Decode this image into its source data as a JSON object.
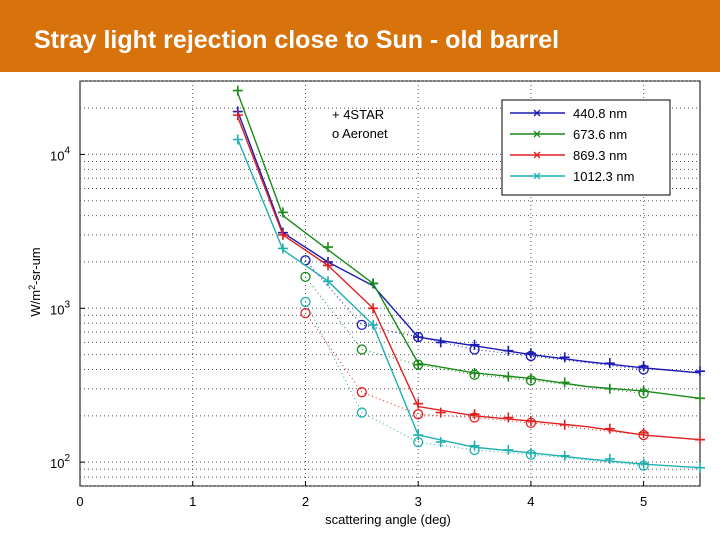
{
  "header": {
    "title": "Stray light rejection close to Sun - old barrel"
  },
  "colors": {
    "title_bar": "#d8720a",
    "title_text": "#ffffff"
  },
  "chart_data": {
    "type": "line",
    "title": "",
    "xlabel": "scattering angle (deg)",
    "ylabel": "W/m²-sr-um",
    "xlim": [
      0,
      5.5
    ],
    "ylim": [
      70,
      30000
    ],
    "yscale": "log",
    "grid": true,
    "x_ticks": [
      0,
      1,
      2,
      3,
      4,
      5
    ],
    "y_ticks": [
      {
        "value": 100,
        "base": "10",
        "exp": "2"
      },
      {
        "value": 1000,
        "base": "10",
        "exp": "3"
      },
      {
        "value": 10000,
        "base": "10",
        "exp": "4"
      }
    ],
    "legend": {
      "placement": "top-right",
      "entries": [
        "440.8 nm",
        "673.6 nm",
        "869.3 nm",
        "1012.3 nm"
      ]
    },
    "annotations": [
      "+ 4STAR",
      "o Aeronet"
    ],
    "series": [
      {
        "name": "440.8 nm",
        "color": "#1a1ab4",
        "line": [
          [
            1.4,
            19000
          ],
          [
            1.8,
            3100
          ],
          [
            2.2,
            2000
          ],
          [
            2.6,
            1400
          ],
          [
            3.0,
            650
          ],
          [
            3.5,
            570
          ],
          [
            4.0,
            500
          ],
          [
            4.5,
            450
          ],
          [
            5.0,
            410
          ],
          [
            5.5,
            380
          ]
        ],
        "star": [
          [
            1.4,
            19000
          ],
          [
            1.8,
            3100
          ],
          [
            2.2,
            2000
          ],
          [
            2.6,
            1450
          ],
          [
            3.0,
            650
          ],
          [
            3.2,
            600
          ],
          [
            3.5,
            580
          ],
          [
            3.8,
            530
          ],
          [
            4.0,
            510
          ],
          [
            4.3,
            480
          ],
          [
            4.7,
            440
          ],
          [
            5.0,
            420
          ],
          [
            5.5,
            390
          ]
        ],
        "aeronet": [
          [
            2.0,
            2050
          ],
          [
            2.5,
            780
          ],
          [
            3.0,
            650
          ],
          [
            3.5,
            540
          ],
          [
            4.0,
            490
          ],
          [
            5.0,
            400
          ]
        ]
      },
      {
        "name": "673.6 nm",
        "color": "#1a8a1a",
        "line": [
          [
            1.4,
            25000
          ],
          [
            1.8,
            4000
          ],
          [
            2.2,
            2400
          ],
          [
            2.6,
            1450
          ],
          [
            3.0,
            440
          ],
          [
            3.5,
            380
          ],
          [
            4.0,
            350
          ],
          [
            4.5,
            310
          ],
          [
            5.0,
            290
          ],
          [
            5.5,
            260
          ]
        ],
        "star": [
          [
            1.4,
            26000
          ],
          [
            1.8,
            4200
          ],
          [
            2.2,
            2500
          ],
          [
            2.6,
            1450
          ],
          [
            3.0,
            430
          ],
          [
            3.5,
            380
          ],
          [
            3.8,
            360
          ],
          [
            4.0,
            350
          ],
          [
            4.3,
            330
          ],
          [
            4.7,
            300
          ],
          [
            5.0,
            290
          ],
          [
            5.5,
            260
          ]
        ],
        "aeronet": [
          [
            2.0,
            1600
          ],
          [
            2.5,
            540
          ],
          [
            3.0,
            430
          ],
          [
            3.5,
            370
          ],
          [
            4.0,
            340
          ],
          [
            5.0,
            280
          ]
        ]
      },
      {
        "name": "869.3 nm",
        "color": "#e02020",
        "line": [
          [
            1.4,
            17500
          ],
          [
            1.8,
            3000
          ],
          [
            2.2,
            1900
          ],
          [
            2.6,
            1000
          ],
          [
            3.0,
            230
          ],
          [
            3.5,
            200
          ],
          [
            4.0,
            185
          ],
          [
            4.5,
            170
          ],
          [
            5.0,
            150
          ],
          [
            5.5,
            140
          ]
        ],
        "star": [
          [
            1.4,
            18000
          ],
          [
            1.8,
            3000
          ],
          [
            2.2,
            1900
          ],
          [
            2.6,
            1000
          ],
          [
            3.0,
            240
          ],
          [
            3.2,
            210
          ],
          [
            3.5,
            205
          ],
          [
            3.8,
            195
          ],
          [
            4.0,
            185
          ],
          [
            4.3,
            175
          ],
          [
            4.7,
            165
          ],
          [
            5.0,
            155
          ],
          [
            5.5,
            140
          ]
        ],
        "aeronet": [
          [
            2.0,
            930
          ],
          [
            2.5,
            285
          ],
          [
            3.0,
            205
          ],
          [
            3.5,
            195
          ],
          [
            4.0,
            180
          ],
          [
            5.0,
            150
          ]
        ]
      },
      {
        "name": "1012.3 nm",
        "color": "#20b0b0",
        "line": [
          [
            1.4,
            12500
          ],
          [
            1.8,
            2400
          ],
          [
            2.2,
            1500
          ],
          [
            2.6,
            780
          ],
          [
            3.0,
            150
          ],
          [
            3.5,
            125
          ],
          [
            4.0,
            115
          ],
          [
            4.5,
            105
          ],
          [
            5.0,
            97
          ],
          [
            5.5,
            92
          ]
        ],
        "star": [
          [
            1.4,
            12500
          ],
          [
            1.8,
            2450
          ],
          [
            2.2,
            1500
          ],
          [
            2.6,
            780
          ],
          [
            3.0,
            150
          ],
          [
            3.2,
            135
          ],
          [
            3.5,
            128
          ],
          [
            3.8,
            120
          ],
          [
            4.0,
            115
          ],
          [
            4.3,
            110
          ],
          [
            4.7,
            105
          ],
          [
            5.0,
            98
          ],
          [
            5.5,
            92
          ]
        ],
        "aeronet": [
          [
            2.0,
            1100
          ],
          [
            2.5,
            210
          ],
          [
            3.0,
            135
          ],
          [
            3.5,
            120
          ],
          [
            4.0,
            112
          ],
          [
            5.0,
            95
          ]
        ]
      }
    ]
  }
}
